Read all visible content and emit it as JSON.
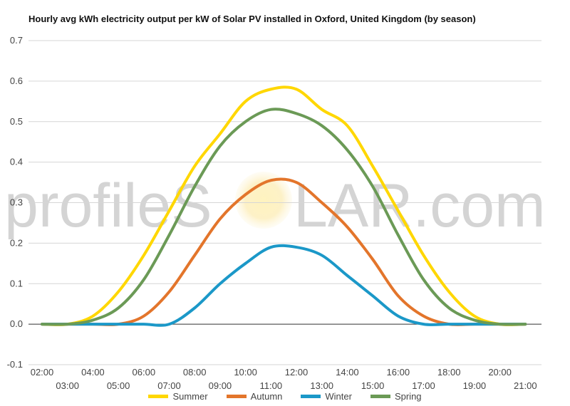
{
  "chart_data": {
    "type": "line",
    "title": "Hourly avg kWh electricity output per kW of Solar PV installed in Oxford, United Kingdom (by season)",
    "xlabel": "",
    "ylabel": "",
    "x": [
      "02:00",
      "03:00",
      "04:00",
      "05:00",
      "06:00",
      "07:00",
      "08:00",
      "09:00",
      "10:00",
      "11:00",
      "12:00",
      "13:00",
      "14:00",
      "15:00",
      "16:00",
      "17:00",
      "18:00",
      "19:00",
      "20:00",
      "21:00"
    ],
    "ylim": [
      -0.1,
      0.7
    ],
    "yticks": [
      "-0.1",
      "0.0",
      "0.1",
      "0.2",
      "0.3",
      "0.4",
      "0.5",
      "0.6",
      "0.7"
    ],
    "grid": true,
    "legend_position": "bottom",
    "series": [
      {
        "name": "Summer",
        "color": "#ffd700",
        "values": [
          0.0,
          0.0,
          0.02,
          0.08,
          0.17,
          0.28,
          0.39,
          0.47,
          0.55,
          0.58,
          0.58,
          0.53,
          0.49,
          0.39,
          0.28,
          0.17,
          0.08,
          0.02,
          0.0,
          0.0
        ]
      },
      {
        "name": "Autumn",
        "color": "#e3752b",
        "values": [
          0.0,
          0.0,
          0.0,
          0.0,
          0.02,
          0.08,
          0.17,
          0.26,
          0.32,
          0.355,
          0.35,
          0.3,
          0.24,
          0.16,
          0.07,
          0.02,
          0.0,
          0.0,
          0.0,
          0.0
        ]
      },
      {
        "name": "Winter",
        "color": "#1b98c8",
        "values": [
          0.0,
          0.0,
          0.0,
          0.0,
          0.0,
          0.0,
          0.04,
          0.1,
          0.15,
          0.19,
          0.19,
          0.17,
          0.12,
          0.07,
          0.02,
          0.0,
          0.0,
          0.0,
          0.0,
          0.0
        ]
      },
      {
        "name": "Spring",
        "color": "#6b9a56",
        "values": [
          0.0,
          0.0,
          0.01,
          0.04,
          0.11,
          0.22,
          0.34,
          0.44,
          0.5,
          0.53,
          0.52,
          0.49,
          0.43,
          0.34,
          0.22,
          0.11,
          0.04,
          0.01,
          0.0,
          0.0
        ]
      }
    ]
  },
  "watermark": {
    "text_left": "profileS",
    "text_right": "LAR.com"
  }
}
